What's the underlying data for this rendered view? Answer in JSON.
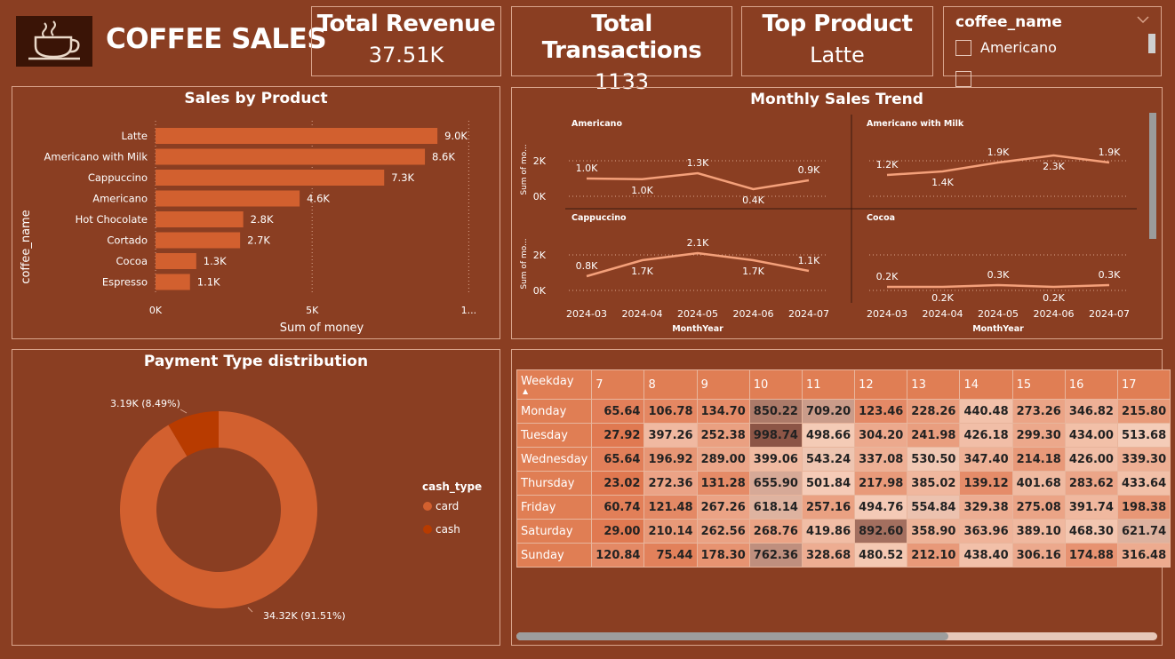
{
  "header": {
    "title": "COFFEE SALES",
    "logo_icon": "coffee-cup-icon"
  },
  "kpis": [
    {
      "title": "Total Revenue",
      "value": "37.51K"
    },
    {
      "title": "Total Transactions",
      "value": "1133"
    },
    {
      "title": "Top Product",
      "value": "Latte"
    }
  ],
  "slicer": {
    "title": "coffee_name",
    "items": [
      "Americano"
    ]
  },
  "colors": {
    "background": "#8a3e22",
    "bar": "#d2602f",
    "line": "#f4a07a",
    "card": "#d2602f",
    "cash": "#b83b00"
  },
  "chart_data": [
    {
      "type": "bar",
      "title": "Sales by Product",
      "xlabel": "Sum of money",
      "ylabel": "coffee_name",
      "categories": [
        "Latte",
        "Americano with Milk",
        "Cappuccino",
        "Americano",
        "Hot Chocolate",
        "Cortado",
        "Cocoa",
        "Espresso"
      ],
      "values": [
        9000,
        8600,
        7300,
        4600,
        2800,
        2700,
        1300,
        1100
      ],
      "data_labels": [
        "9.0K",
        "8.6K",
        "7.3K",
        "4.6K",
        "2.8K",
        "2.7K",
        "1.3K",
        "1.1K"
      ],
      "xticks": [
        "0K",
        "5K",
        "1..."
      ],
      "xlim": [
        0,
        10500
      ]
    },
    {
      "type": "line",
      "title": "Monthly Sales Trend",
      "xlabel": "MonthYear",
      "ylabel": "Sum of mo...",
      "x": [
        "2024-03",
        "2024-04",
        "2024-05",
        "2024-06",
        "2024-07"
      ],
      "yticks": [
        "2K",
        "0K"
      ],
      "ylim": [
        0,
        2600
      ],
      "series": [
        {
          "name": "Americano",
          "values": [
            1000,
            960,
            1300,
            400,
            900
          ],
          "labels": [
            "1.0K",
            "1.0K",
            "1.3K",
            "0.4K",
            "0.9K"
          ]
        },
        {
          "name": "Americano with Milk",
          "values": [
            1200,
            1400,
            1900,
            2300,
            1900
          ],
          "labels": [
            "1.2K",
            "1.4K",
            "1.9K",
            "2.3K",
            "1.9K"
          ]
        },
        {
          "name": "Cappuccino",
          "values": [
            800,
            1700,
            2100,
            1700,
            1100
          ],
          "labels": [
            "0.8K",
            "1.7K",
            "2.1K",
            "1.7K",
            "1.1K"
          ]
        },
        {
          "name": "Cocoa",
          "values": [
            200,
            200,
            300,
            200,
            300
          ],
          "labels": [
            "0.2K",
            "0.2K",
            "0.3K",
            "0.2K",
            "0.3K"
          ]
        }
      ]
    },
    {
      "type": "pie",
      "title": "Payment Type distribution",
      "legend_title": "cash_type",
      "slices": [
        {
          "name": "card",
          "value": 34320,
          "label": "34.32K (91.51%)"
        },
        {
          "name": "cash",
          "value": 3190,
          "label": "3.19K (8.49%)"
        }
      ]
    },
    {
      "type": "heatmap",
      "row_header": "Weekday",
      "columns": [
        "7",
        "8",
        "9",
        "10",
        "11",
        "12",
        "13",
        "14",
        "15",
        "16",
        "17"
      ],
      "rows": [
        {
          "day": "Monday",
          "values": [
            "65.64",
            "106.78",
            "134.70",
            "850.22",
            "709.20",
            "123.46",
            "228.26",
            "440.48",
            "273.26",
            "346.82",
            "215.80"
          ]
        },
        {
          "day": "Tuesday",
          "values": [
            "27.92",
            "397.26",
            "252.38",
            "998.74",
            "498.66",
            "304.20",
            "241.98",
            "426.18",
            "299.30",
            "434.00",
            "513.68"
          ]
        },
        {
          "day": "Wednesday",
          "values": [
            "65.64",
            "196.92",
            "289.00",
            "399.06",
            "543.24",
            "337.08",
            "530.50",
            "347.40",
            "214.18",
            "426.00",
            "339.30"
          ]
        },
        {
          "day": "Thursday",
          "values": [
            "23.02",
            "272.36",
            "131.28",
            "655.90",
            "501.84",
            "217.98",
            "385.02",
            "139.12",
            "401.68",
            "283.62",
            "433.64"
          ]
        },
        {
          "day": "Friday",
          "values": [
            "60.74",
            "121.48",
            "267.26",
            "618.14",
            "257.16",
            "494.76",
            "554.84",
            "329.38",
            "275.08",
            "391.74",
            "198.38"
          ]
        },
        {
          "day": "Saturday",
          "values": [
            "29.00",
            "210.14",
            "262.56",
            "268.76",
            "419.86",
            "892.60",
            "358.90",
            "363.96",
            "389.10",
            "468.30",
            "621.74"
          ]
        },
        {
          "day": "Sunday",
          "values": [
            "120.84",
            "75.44",
            "178.30",
            "762.36",
            "328.68",
            "480.52",
            "212.10",
            "438.40",
            "306.16",
            "174.88",
            "316.48"
          ]
        }
      ]
    }
  ]
}
